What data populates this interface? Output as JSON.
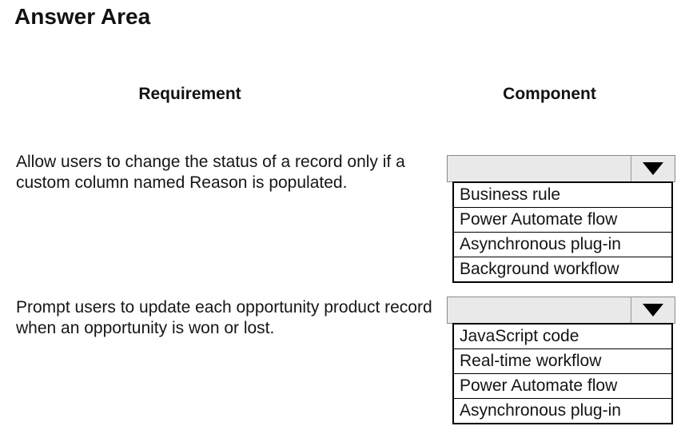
{
  "title": "Answer Area",
  "columns": {
    "requirement": "Requirement",
    "component": "Component"
  },
  "rows": [
    {
      "requirement": "Allow users to change the status of a record only if a custom column named Reason is populated.",
      "selected_value": "",
      "options": [
        "Business rule",
        "Power Automate flow",
        "Asynchronous plug-in",
        "Background workflow"
      ]
    },
    {
      "requirement": "Prompt users to update each opportunity product record when an opportunity is won or lost.",
      "selected_value": "",
      "options": [
        "JavaScript code",
        "Real-time workflow",
        "Power Automate flow",
        "Asynchronous plug-in"
      ]
    }
  ],
  "icons": {
    "dropdown_arrow": "triangle-down-icon"
  },
  "colors": {
    "background": "#ffffff",
    "text": "#161616",
    "combobox_fill": "#e9e9e9",
    "combobox_border": "#8a8a8a",
    "list_border": "#000000",
    "arrow": "#000000"
  }
}
